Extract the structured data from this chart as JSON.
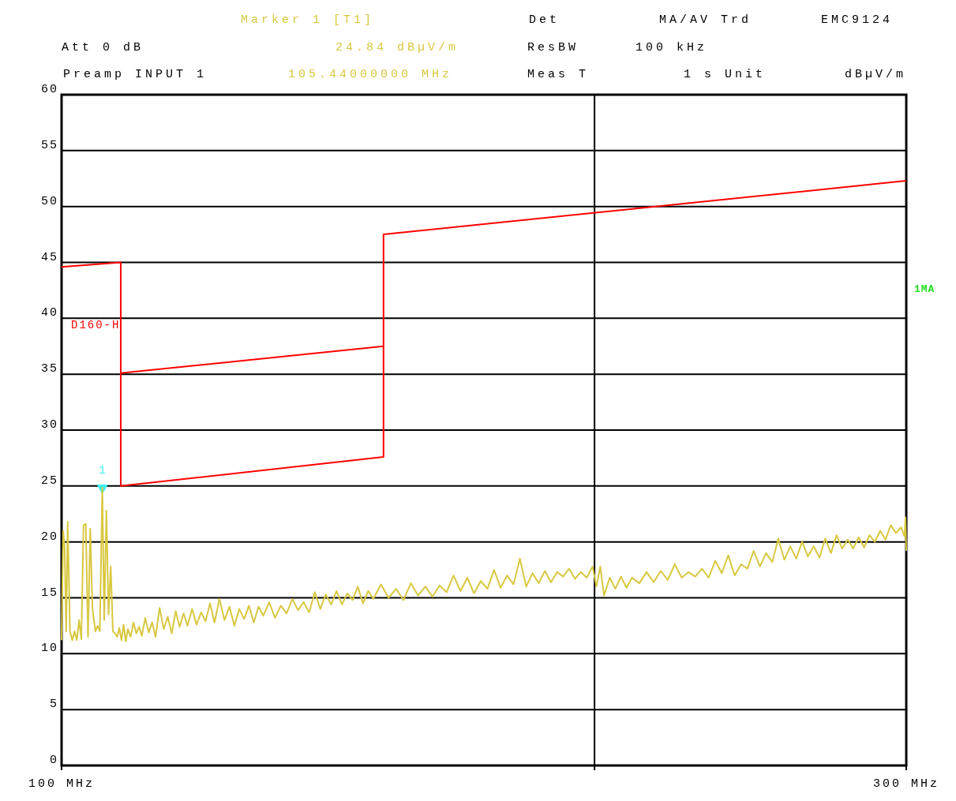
{
  "chart_data": {
    "type": "line",
    "annotations": [
      "Marker 1 [T1]",
      "Det",
      "MA/AV Trd",
      "EMC9124",
      "Att 0 dB",
      "24.84 dBµV/m",
      "ResBW",
      "100 kHz",
      "Preamp INPUT 1",
      "105.44000000 MHz",
      "Meas T",
      "1 s Unit",
      "dBµV/m",
      "1MA",
      {
        "text": "1",
        "x": 105.44,
        "y": 24.84
      }
    ],
    "xlim": [
      100,
      300
    ],
    "xticks": [
      {
        "value": 100,
        "label": "100 MHz"
      },
      {
        "value": 200,
        "label": null
      },
      {
        "value": 300,
        "label": "300 MHz"
      }
    ],
    "ylim": [
      0,
      60
    ],
    "yticks": [
      0,
      5,
      10,
      15,
      20,
      25,
      30,
      35,
      40,
      45,
      50,
      55,
      60
    ],
    "log": "x",
    "grid": true,
    "legend": false,
    "series": [
      {
        "color": "#d8c840",
        "x": [
          100,
          100.2,
          100.4,
          100.6,
          100.8,
          101.1,
          101.4,
          101.7,
          102.0,
          102.3,
          102.6,
          102.9,
          103.2,
          103.5,
          103.8,
          104.1,
          104.5,
          104.8,
          105.1,
          105.44,
          105.7,
          106.0,
          106.3,
          106.6,
          106.9,
          107.2,
          107.5,
          107.8,
          108.1,
          108.4,
          108.7,
          109.0,
          109.4,
          109.8,
          110.2,
          110.6,
          111.0,
          111.5,
          112.0,
          112.5,
          113.0,
          113.6,
          114.2,
          114.8,
          115.4,
          116.0,
          116.6,
          117.2,
          117.8,
          118.5,
          119.2,
          119.9,
          120.6,
          121.3,
          122.0,
          122.8,
          123.6,
          124.4,
          125.2,
          126.0,
          126.8,
          127.6,
          128.4,
          129.2,
          130.0,
          131.0,
          132.0,
          133.0,
          134.0,
          135.0,
          136.0,
          137.0,
          138.0,
          139.0,
          140.0,
          141.0,
          142.0,
          143.0,
          144.0,
          145.0,
          146.0,
          147.0,
          148.0,
          149.0,
          150.0,
          151.5,
          153.0,
          154.5,
          156.0,
          157.5,
          159.0,
          160.5,
          162.0,
          163.5,
          165.0,
          166.5,
          168.0,
          169.5,
          171.0,
          172.5,
          174.0,
          175.5,
          177.0,
          178.5,
          180.0,
          181.5,
          183.0,
          184.5,
          186.0,
          187.5,
          189.0,
          190.5,
          192.0,
          193.5,
          195.0,
          196.5,
          198.0,
          199.5,
          200.5,
          201.5,
          202.5,
          204.0,
          205.5,
          207.0,
          208.5,
          210.0,
          212.0,
          214.0,
          216.0,
          218.0,
          220.0,
          222.0,
          224.0,
          226.0,
          228.0,
          230.0,
          232.0,
          234.0,
          236.0,
          238.0,
          240.0,
          242.0,
          244.0,
          246.0,
          248.0,
          250.0,
          252.0,
          254.0,
          256.0,
          258.0,
          260.0,
          262.0,
          264.0,
          266.0,
          268.0,
          270.0,
          272.0,
          274.0,
          276.0,
          278.0,
          280.0,
          282.0,
          284.0,
          286.0,
          288.0,
          290.0,
          292.0,
          294.0,
          296.0,
          298.0,
          299.3,
          299.7,
          300
        ],
        "values": [
          11.2,
          21.0,
          19.5,
          12.0,
          21.8,
          12.0,
          11.2,
          12.0,
          11.2,
          13.0,
          11.3,
          21.5,
          21.6,
          11.5,
          21.2,
          14.0,
          12.0,
          12.5,
          12.0,
          24.84,
          13.0,
          22.8,
          13.5,
          17.8,
          12.0,
          11.8,
          11.5,
          12.3,
          11.2,
          12.6,
          11.1,
          12.2,
          11.5,
          12.8,
          11.8,
          12.4,
          11.6,
          13.2,
          11.9,
          12.8,
          11.5,
          14.1,
          12.2,
          13.3,
          11.8,
          13.8,
          12.4,
          13.6,
          12.5,
          14.0,
          12.6,
          13.7,
          12.9,
          14.5,
          12.8,
          14.9,
          13.0,
          14.2,
          12.5,
          14.0,
          13.1,
          14.3,
          12.8,
          14.2,
          13.4,
          14.6,
          13.2,
          14.3,
          13.6,
          14.9,
          13.9,
          14.6,
          13.7,
          15.5,
          14.0,
          15.3,
          14.4,
          15.6,
          14.4,
          15.4,
          14.8,
          16.0,
          14.5,
          15.6,
          14.9,
          16.2,
          15.0,
          15.8,
          14.8,
          16.3,
          15.2,
          16.0,
          15.1,
          16.1,
          15.5,
          17.0,
          15.6,
          16.8,
          15.4,
          16.5,
          15.8,
          17.5,
          15.9,
          17.0,
          16.2,
          18.5,
          16.0,
          17.2,
          16.3,
          17.4,
          16.4,
          17.3,
          16.9,
          17.6,
          16.7,
          17.3,
          16.8,
          17.8,
          16.0,
          17.8,
          15.2,
          16.8,
          15.8,
          16.9,
          15.9,
          16.8,
          16.3,
          17.3,
          16.4,
          17.4,
          16.6,
          18.0,
          16.8,
          17.3,
          16.9,
          17.6,
          16.8,
          18.3,
          17.2,
          18.8,
          17.0,
          18.0,
          17.6,
          19.2,
          17.8,
          19.0,
          18.2,
          20.3,
          18.4,
          19.6,
          18.5,
          20.0,
          18.7,
          19.6,
          18.6,
          20.3,
          19.0,
          20.6,
          19.4,
          20.2,
          19.4,
          20.4,
          19.5,
          20.6,
          20.0,
          21.0,
          20.2,
          21.5,
          20.8,
          21.3,
          20.5,
          22.2,
          19.2
        ]
      },
      {
        "name": "D160-H",
        "color": "#ff0000",
        "x": [
          100,
          108,
          108,
          152,
          152,
          300
        ],
        "values": [
          44.6,
          45,
          25,
          27.6,
          47.5,
          52.3
        ]
      },
      {
        "color": "#ff0000",
        "x": [
          108,
          152
        ],
        "values": [
          35.1,
          37.5
        ]
      },
      {
        "type": "scatter",
        "color": "#40f0f0",
        "marker": "triangle",
        "x": [
          105.44
        ],
        "values": [
          24.84
        ]
      }
    ]
  }
}
